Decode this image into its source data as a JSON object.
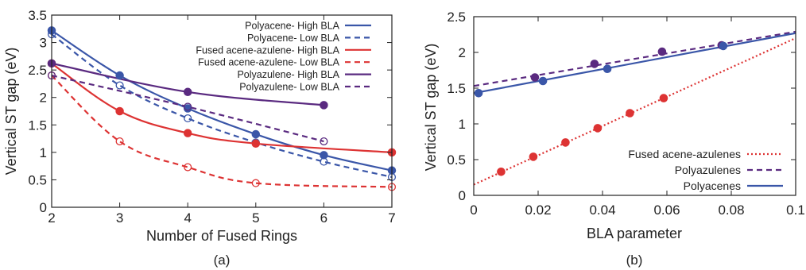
{
  "chart_data": [
    {
      "panel_label": "(a)",
      "type": "line",
      "xlabel": "Number of Fused Rings",
      "ylabel": "Vertical ST gap (eV)",
      "xlim": [
        2,
        7
      ],
      "ylim": [
        0,
        3.5
      ],
      "xticks": [
        "2",
        "3",
        "4",
        "5",
        "6",
        "7"
      ],
      "yticks": [
        "0",
        "0.5",
        "1",
        "1.5",
        "2",
        "2.5",
        "3",
        "3.5"
      ],
      "legend_position": "top-right",
      "series": [
        {
          "name": "Polyacene- High BLA",
          "color": "#3a56a8",
          "dash": "solid",
          "marker": "filled",
          "points": [
            [
              2,
              3.22
            ],
            [
              3,
              2.4
            ],
            [
              4,
              1.8
            ],
            [
              5,
              1.33
            ],
            [
              6,
              0.95
            ],
            [
              7,
              0.67
            ]
          ]
        },
        {
          "name": "Polyacene- Low BLA",
          "color": "#3a56a8",
          "dash": "dashed",
          "marker": "open",
          "points": [
            [
              2,
              3.15
            ],
            [
              3,
              2.22
            ],
            [
              4,
              1.62
            ],
            [
              5,
              1.18
            ],
            [
              6,
              0.83
            ],
            [
              7,
              0.55
            ]
          ]
        },
        {
          "name": "Fused acene-azulene- High BLA",
          "color": "#dd3333",
          "dash": "solid",
          "marker": "filled",
          "points": [
            [
              2,
              2.62
            ],
            [
              3,
              1.75
            ],
            [
              4,
              1.35
            ],
            [
              5,
              1.16
            ],
            [
              7,
              1.0
            ]
          ]
        },
        {
          "name": "Fused acene-azulene- Low BLA",
          "color": "#dd3333",
          "dash": "dashed",
          "marker": "open",
          "points": [
            [
              2,
              2.4
            ],
            [
              3,
              1.2
            ],
            [
              4,
              0.73
            ],
            [
              5,
              0.44
            ],
            [
              7,
              0.37
            ]
          ]
        },
        {
          "name": "Polyazulene- High BLA",
          "color": "#5a2a80",
          "dash": "solid",
          "marker": "filled",
          "points": [
            [
              2,
              2.62
            ],
            [
              4,
              2.1
            ],
            [
              6,
              1.86
            ]
          ]
        },
        {
          "name": "Polyazulene- Low BLA",
          "color": "#5a2a80",
          "dash": "dashed",
          "marker": "open",
          "points": [
            [
              2,
              2.4
            ],
            [
              4,
              1.83
            ],
            [
              6,
              1.2
            ]
          ]
        }
      ]
    },
    {
      "panel_label": "(b)",
      "type": "line",
      "xlabel": "BLA parameter",
      "ylabel": "Vertical ST gap (eV)",
      "xlim": [
        0,
        0.1
      ],
      "ylim": [
        0,
        2.5
      ],
      "xticks": [
        "0",
        "0.02",
        "0.04",
        "0.06",
        "0.08",
        "0.1"
      ],
      "yticks": [
        "0",
        "0.5",
        "1",
        "1.5",
        "2",
        "2.5"
      ],
      "legend_position": "bottom-right",
      "series": [
        {
          "name": "Fused acene-azulenes",
          "color": "#dd3333",
          "dash": "dotted",
          "fit": [
            [
              0,
              0.15
            ],
            [
              0.1,
              2.2
            ]
          ],
          "points": [
            [
              0.0085,
              0.33
            ],
            [
              0.0185,
              0.54
            ],
            [
              0.0285,
              0.74
            ],
            [
              0.0385,
              0.94
            ],
            [
              0.0485,
              1.15
            ],
            [
              0.059,
              1.36
            ]
          ]
        },
        {
          "name": "Polyazulenes",
          "color": "#5a2a80",
          "dash": "dashed",
          "fit": [
            [
              0,
              1.53
            ],
            [
              0.1,
              2.29
            ]
          ],
          "points": [
            [
              0.019,
              1.65
            ],
            [
              0.0375,
              1.84
            ],
            [
              0.0585,
              2.01
            ],
            [
              0.077,
              2.1
            ]
          ]
        },
        {
          "name": "Polyacenes",
          "color": "#3a56a8",
          "dash": "solid",
          "fit": [
            [
              0,
              1.43
            ],
            [
              0.1,
              2.27
            ]
          ],
          "points": [
            [
              0.0015,
              1.43
            ],
            [
              0.0215,
              1.6
            ],
            [
              0.0415,
              1.77
            ],
            [
              0.0775,
              2.09
            ]
          ]
        }
      ]
    }
  ]
}
